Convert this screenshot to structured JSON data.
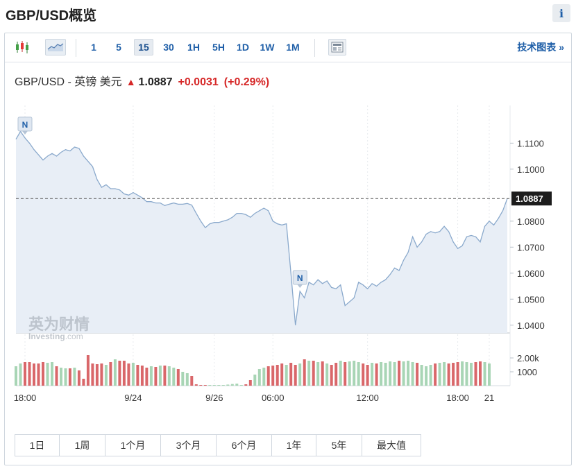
{
  "page": {
    "title": "GBP/USD概览",
    "info_label": "i"
  },
  "toolbar": {
    "intervals": [
      "1",
      "5",
      "15",
      "30",
      "1H",
      "5H",
      "1D",
      "1W",
      "1M"
    ],
    "active_interval": "15",
    "tech_link": "技术图表 »"
  },
  "quote": {
    "name": "GBP/USD - 英镑 美元",
    "price": "1.0887",
    "change": "+0.0031",
    "change_pct": "(+0.29%)"
  },
  "ranges": [
    "1日",
    "1周",
    "1个月",
    "3个月",
    "6个月",
    "1年",
    "5年",
    "最大值"
  ],
  "watermark": {
    "cn": "英为财情",
    "en": "Investing",
    "suffix": ".com"
  },
  "colors": {
    "line": "#8aa9cc",
    "area": "#e8eef6",
    "up_bar": "#a8d5b5",
    "down_bar": "#d9676a",
    "accent": "#1f5fa8",
    "neg": "#d62828"
  },
  "chart_data": {
    "type": "line",
    "y_ticks": [
      "1.1100",
      "1.1000",
      "1.0800",
      "1.0700",
      "1.0600",
      "1.0500",
      "1.0400"
    ],
    "ylim": [
      1.037,
      1.1245
    ],
    "last_value": 1.0887,
    "last_value_label": "1.0887",
    "volume_ticks": [
      "2.00k",
      "1000"
    ],
    "volume_ylim": [
      0,
      2900
    ],
    "x_tick_labels": [
      "18:00",
      "9/24",
      "9/26",
      "06:00",
      "12:00",
      "18:00",
      "21"
    ],
    "x_tick_index": [
      2,
      26,
      44,
      57,
      78,
      98,
      105
    ],
    "markers": [
      {
        "label": "N",
        "index": 2
      },
      {
        "label": "N",
        "index": 63
      }
    ],
    "price": [
      1.1115,
      1.1145,
      1.112,
      1.11,
      1.1075,
      1.1055,
      1.1035,
      1.105,
      1.106,
      1.105,
      1.1065,
      1.1075,
      1.107,
      1.1085,
      1.108,
      1.105,
      1.103,
      1.101,
      1.096,
      1.093,
      1.094,
      1.0925,
      1.0925,
      1.092,
      1.0905,
      1.09,
      1.091,
      1.09,
      1.089,
      1.0875,
      1.0875,
      1.087,
      1.087,
      1.086,
      1.0865,
      1.087,
      1.0865,
      1.0865,
      1.0868,
      1.0862,
      1.083,
      1.08,
      1.0775,
      1.079,
      1.0795,
      1.0795,
      1.08,
      1.0805,
      1.0815,
      1.083,
      1.083,
      1.0825,
      1.0815,
      1.083,
      1.084,
      1.085,
      1.084,
      1.08,
      1.079,
      1.0785,
      1.079,
      1.06,
      1.04,
      1.053,
      1.0505,
      1.0565,
      1.0555,
      1.0575,
      1.056,
      1.057,
      1.0545,
      1.054,
      1.0555,
      1.0475,
      1.049,
      1.0505,
      1.0565,
      1.0555,
      1.054,
      1.056,
      1.055,
      1.0565,
      1.0575,
      1.0595,
      1.062,
      1.061,
      1.065,
      1.068,
      1.074,
      1.07,
      1.072,
      1.075,
      1.076,
      1.0755,
      1.076,
      1.078,
      1.076,
      1.072,
      1.0695,
      1.0705,
      1.074,
      1.0745,
      1.074,
      1.072,
      1.078,
      1.08,
      1.0785,
      1.081,
      1.084,
      1.0887
    ],
    "volume": [
      1400,
      1600,
      1700,
      1700,
      1600,
      1600,
      1700,
      1650,
      1700,
      1400,
      1300,
      1250,
      1250,
      1300,
      1100,
      500,
      2200,
      1600,
      1550,
      1600,
      1500,
      1700,
      1900,
      1800,
      1800,
      1600,
      1650,
      1500,
      1450,
      1300,
      1400,
      1350,
      1450,
      1450,
      1400,
      1300,
      1200,
      1000,
      900,
      700,
      100,
      30,
      30,
      30,
      30,
      30,
      30,
      80,
      120,
      150,
      50,
      100,
      400,
      800,
      1200,
      1300,
      1400,
      1450,
      1500,
      1600,
      1500,
      1650,
      1500,
      1600,
      1900,
      1800,
      1800,
      1700,
      1750,
      1600,
      1500,
      1650,
      1800,
      1700,
      1750,
      1800,
      1700,
      1600,
      1500,
      1650,
      1600,
      1700,
      1650,
      1750,
      1700,
      1800,
      1750,
      1800,
      1700,
      1650,
      1500,
      1400,
      1500,
      1600,
      1650,
      1700,
      1600,
      1650,
      1700,
      1750,
      1700,
      1650,
      1700,
      1750,
      1700,
      1600
    ]
  }
}
